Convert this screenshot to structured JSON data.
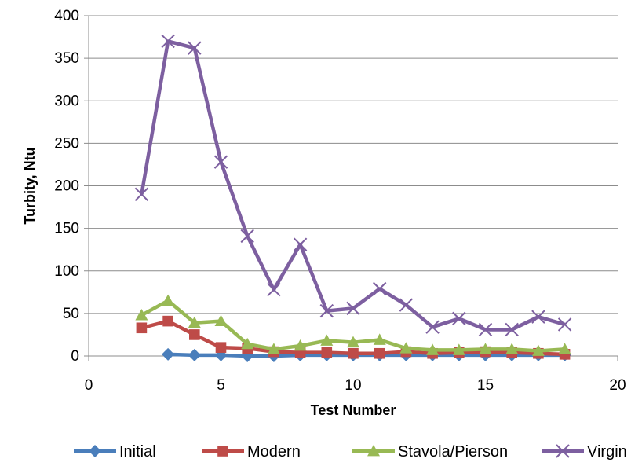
{
  "chart_data": {
    "type": "line",
    "xlabel": "Test Number",
    "ylabel": "Turbity, Ntu",
    "xlim": [
      0,
      20
    ],
    "ylim": [
      0,
      400
    ],
    "xticks": [
      0,
      5,
      10,
      15,
      20
    ],
    "yticks": [
      0,
      50,
      100,
      150,
      200,
      250,
      300,
      350,
      400
    ],
    "grid": "horizontal",
    "legend_position": "bottom",
    "series": [
      {
        "name": "Initial",
        "color": "#4a7ebb",
        "marker": "diamond",
        "x": [
          3,
          4,
          5,
          6,
          7,
          8,
          9,
          10,
          11,
          12,
          13,
          14,
          15,
          16,
          17,
          18
        ],
        "y": [
          2,
          1,
          1,
          0,
          0,
          1,
          1,
          1,
          1,
          1,
          1,
          1,
          1,
          1,
          1,
          1
        ]
      },
      {
        "name": "Modern",
        "color": "#be4b48",
        "marker": "square",
        "x": [
          2,
          3,
          4,
          5,
          6,
          7,
          8,
          9,
          10,
          11,
          12,
          13,
          14,
          15,
          16,
          17,
          18
        ],
        "y": [
          33,
          41,
          25,
          10,
          9,
          5,
          4,
          4,
          3,
          3,
          5,
          3,
          4,
          5,
          4,
          3,
          2
        ]
      },
      {
        "name": "Stavola/Pierson",
        "color": "#98b954",
        "marker": "triangle",
        "x": [
          2,
          3,
          4,
          5,
          6,
          7,
          8,
          9,
          10,
          11,
          12,
          13,
          14,
          15,
          16,
          17,
          18
        ],
        "y": [
          48,
          65,
          39,
          41,
          14,
          8,
          12,
          18,
          16,
          19,
          9,
          7,
          7,
          8,
          8,
          6,
          8
        ]
      },
      {
        "name": "Virgin",
        "color": "#7d5fa0",
        "marker": "x",
        "x": [
          2,
          3,
          4,
          5,
          6,
          7,
          8,
          9,
          10,
          11,
          12,
          13,
          14,
          15,
          16,
          17,
          18
        ],
        "y": [
          190,
          370,
          362,
          228,
          141,
          78,
          131,
          53,
          56,
          79,
          60,
          34,
          44,
          31,
          31,
          46,
          37
        ]
      }
    ]
  }
}
